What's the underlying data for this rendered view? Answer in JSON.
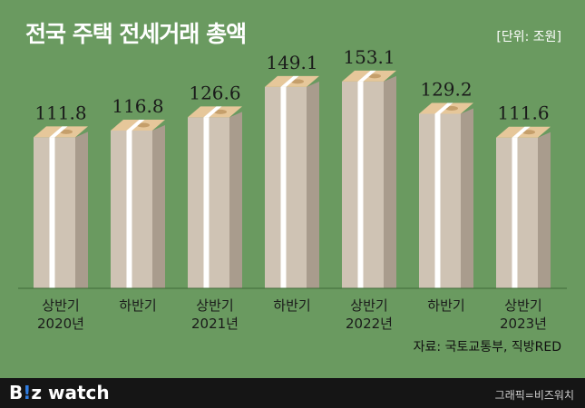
{
  "title": "전국 주택 전세거래 총액",
  "unit": "[단위: 조원]",
  "source": "자료: 국토교통부, 직방RED",
  "footer": {
    "logo_b": "B",
    "logo_bang": "!",
    "logo_z": "z",
    "logo_watch": " watch",
    "credit": "그래픽=비즈워치"
  },
  "colors": {
    "background": "#6a9a60",
    "stack_front": "#cfc3b4",
    "stack_side": "#a99c8d",
    "band": "#ffffff",
    "bill": "#e6c79a"
  },
  "chart_data": {
    "type": "bar",
    "title": "전국 주택 전세거래 총액",
    "unit": "조원",
    "categories": [
      [
        "상반기",
        "2020년"
      ],
      [
        "하반기",
        ""
      ],
      [
        "상반기",
        "2021년"
      ],
      [
        "하반기",
        ""
      ],
      [
        "상반기",
        "2022년"
      ],
      [
        "하반기",
        ""
      ],
      [
        "상반기",
        "2023년"
      ]
    ],
    "values": [
      111.8,
      116.8,
      126.6,
      149.1,
      153.1,
      129.2,
      111.6
    ],
    "value_labels": [
      "111.8",
      "116.8",
      "126.6",
      "149.1",
      "153.1",
      "129.2",
      "111.6"
    ],
    "ylim": [
      0,
      160
    ],
    "grid": false,
    "legend": "none"
  }
}
